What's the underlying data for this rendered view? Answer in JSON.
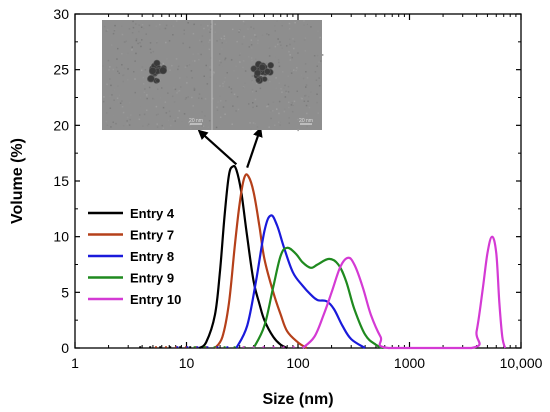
{
  "chart_data": {
    "type": "line",
    "xlabel": "Size (nm)",
    "ylabel": "Volume (%)",
    "x_scale": "log",
    "xlim": [
      1,
      10000
    ],
    "ylim": [
      0,
      30
    ],
    "x_ticks": [
      1,
      10,
      100,
      1000,
      10000
    ],
    "x_tick_labels": [
      "1",
      "10",
      "100",
      "1000",
      "10,000"
    ],
    "y_ticks": [
      0,
      5,
      10,
      15,
      20,
      25,
      30
    ],
    "y_tick_labels": [
      "0",
      "5",
      "10",
      "15",
      "20",
      "25",
      "30"
    ],
    "grid": false,
    "legend_placement": "left",
    "series": [
      {
        "name": "Entry 4",
        "color": "#000000",
        "points": [
          [
            13,
            0
          ],
          [
            15,
            0.5
          ],
          [
            18,
            3
          ],
          [
            20,
            7
          ],
          [
            22,
            12
          ],
          [
            24,
            15.5
          ],
          [
            26,
            16.3
          ],
          [
            28,
            16
          ],
          [
            31,
            14
          ],
          [
            35,
            10
          ],
          [
            40,
            6
          ],
          [
            45,
            4
          ],
          [
            50,
            2.5
          ],
          [
            60,
            1
          ],
          [
            70,
            0.3
          ],
          [
            80,
            0
          ]
        ]
      },
      {
        "name": "Entry 7",
        "color": "#b5401a",
        "points": [
          [
            18,
            0
          ],
          [
            21,
            1
          ],
          [
            24,
            4
          ],
          [
            27,
            9
          ],
          [
            30,
            13
          ],
          [
            33,
            15.3
          ],
          [
            36,
            15.4
          ],
          [
            40,
            14
          ],
          [
            45,
            11
          ],
          [
            50,
            8
          ],
          [
            60,
            5
          ],
          [
            70,
            3
          ],
          [
            80,
            1.5
          ],
          [
            100,
            0.5
          ],
          [
            120,
            0
          ]
        ]
      },
      {
        "name": "Entry 8",
        "color": "#1a1adb",
        "points": [
          [
            28,
            0
          ],
          [
            35,
            2
          ],
          [
            42,
            6
          ],
          [
            50,
            10.5
          ],
          [
            57,
            11.9
          ],
          [
            65,
            11
          ],
          [
            75,
            9
          ],
          [
            90,
            6.8
          ],
          [
            110,
            5.6
          ],
          [
            130,
            4.8
          ],
          [
            150,
            4.3
          ],
          [
            180,
            4.2
          ],
          [
            210,
            3.5
          ],
          [
            250,
            2
          ],
          [
            300,
            0.8
          ],
          [
            400,
            0
          ]
        ]
      },
      {
        "name": "Entry 9",
        "color": "#1f8a1f",
        "points": [
          [
            40,
            0
          ],
          [
            50,
            2
          ],
          [
            60,
            5.5
          ],
          [
            70,
            8.3
          ],
          [
            80,
            9
          ],
          [
            95,
            8.5
          ],
          [
            110,
            7.7
          ],
          [
            130,
            7.2
          ],
          [
            150,
            7.5
          ],
          [
            190,
            8
          ],
          [
            230,
            7.5
          ],
          [
            270,
            6
          ],
          [
            320,
            3.5
          ],
          [
            400,
            1.2
          ],
          [
            500,
            0.3
          ],
          [
            580,
            0
          ]
        ]
      },
      {
        "name": "Entry 10",
        "color": "#d43ad4",
        "points": [
          [
            110,
            0
          ],
          [
            140,
            1
          ],
          [
            170,
            3
          ],
          [
            200,
            5
          ],
          [
            240,
            7.3
          ],
          [
            280,
            8.1
          ],
          [
            320,
            7.5
          ],
          [
            380,
            5.5
          ],
          [
            450,
            3
          ],
          [
            550,
            1
          ],
          [
            650,
            0
          ],
          [
            3600,
            0
          ],
          [
            4000,
            1.5
          ],
          [
            4500,
            5
          ],
          [
            5000,
            8.5
          ],
          [
            5500,
            10
          ],
          [
            6000,
            8.5
          ],
          [
            6400,
            4
          ],
          [
            6800,
            1
          ],
          [
            7200,
            0
          ]
        ]
      }
    ],
    "annotations": [
      {
        "type": "arrow",
        "from": [
          28,
          16.5
        ],
        "to": [
          13,
          19.5
        ],
        "color": "#000000"
      },
      {
        "type": "arrow",
        "from": [
          35,
          16.2
        ],
        "to": [
          46,
          19.7
        ],
        "color": "#000000"
      }
    ],
    "inset": {
      "type": "micrograph-pair",
      "panels": [
        {
          "scale_bar": "20 nm"
        },
        {
          "scale_bar": "20 nm"
        }
      ]
    }
  }
}
